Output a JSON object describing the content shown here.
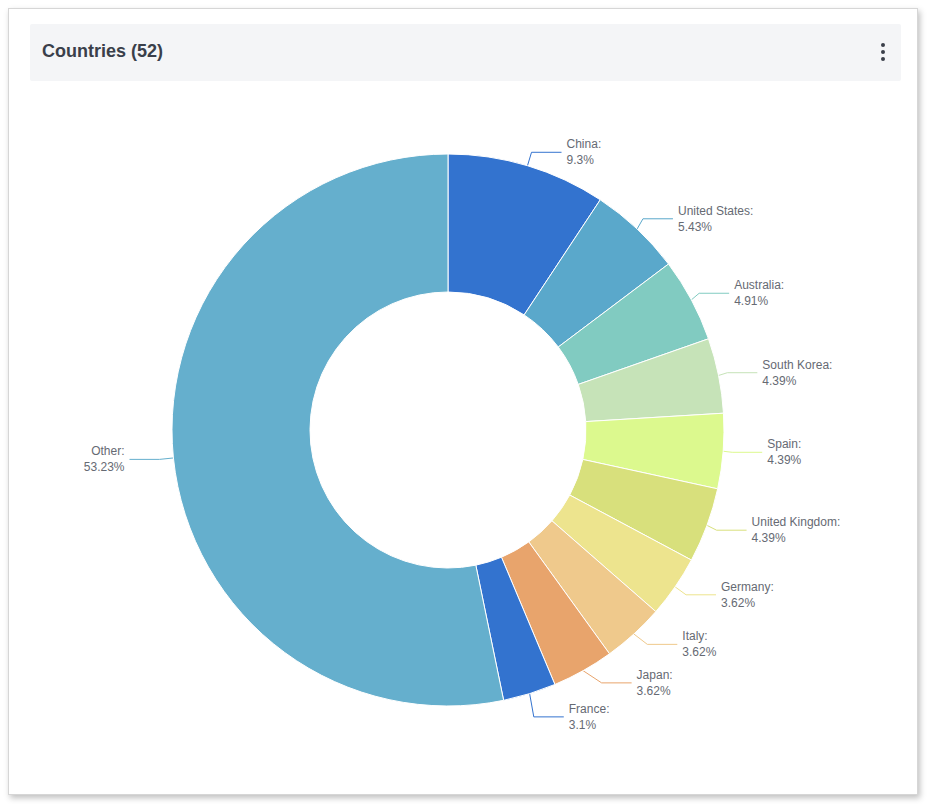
{
  "chart_data": {
    "type": "donut",
    "title": "Countries (52)",
    "categories": [
      "China:",
      "United States:",
      "Australia:",
      "South Korea:",
      "Spain:",
      "United Kingdom:",
      "Germany:",
      "Italy:",
      "Japan:",
      "France:",
      "Other:"
    ],
    "values": [
      9.3,
      5.43,
      4.91,
      4.39,
      4.39,
      4.39,
      3.62,
      3.62,
      3.62,
      3.1,
      53.23
    ],
    "value_labels": [
      "9.3%",
      "5.43%",
      "4.91%",
      "4.39%",
      "4.39%",
      "4.39%",
      "3.62%",
      "3.62%",
      "3.62%",
      "3.1%",
      "53.23%"
    ],
    "colors": [
      "#3373cf",
      "#5aa8cb",
      "#81cbc1",
      "#c6e3b8",
      "#dcf98e",
      "#d8e07c",
      "#ede48e",
      "#efc98c",
      "#e8a46c",
      "#3373cf",
      "#65afcd"
    ],
    "data_labels": true
  }
}
